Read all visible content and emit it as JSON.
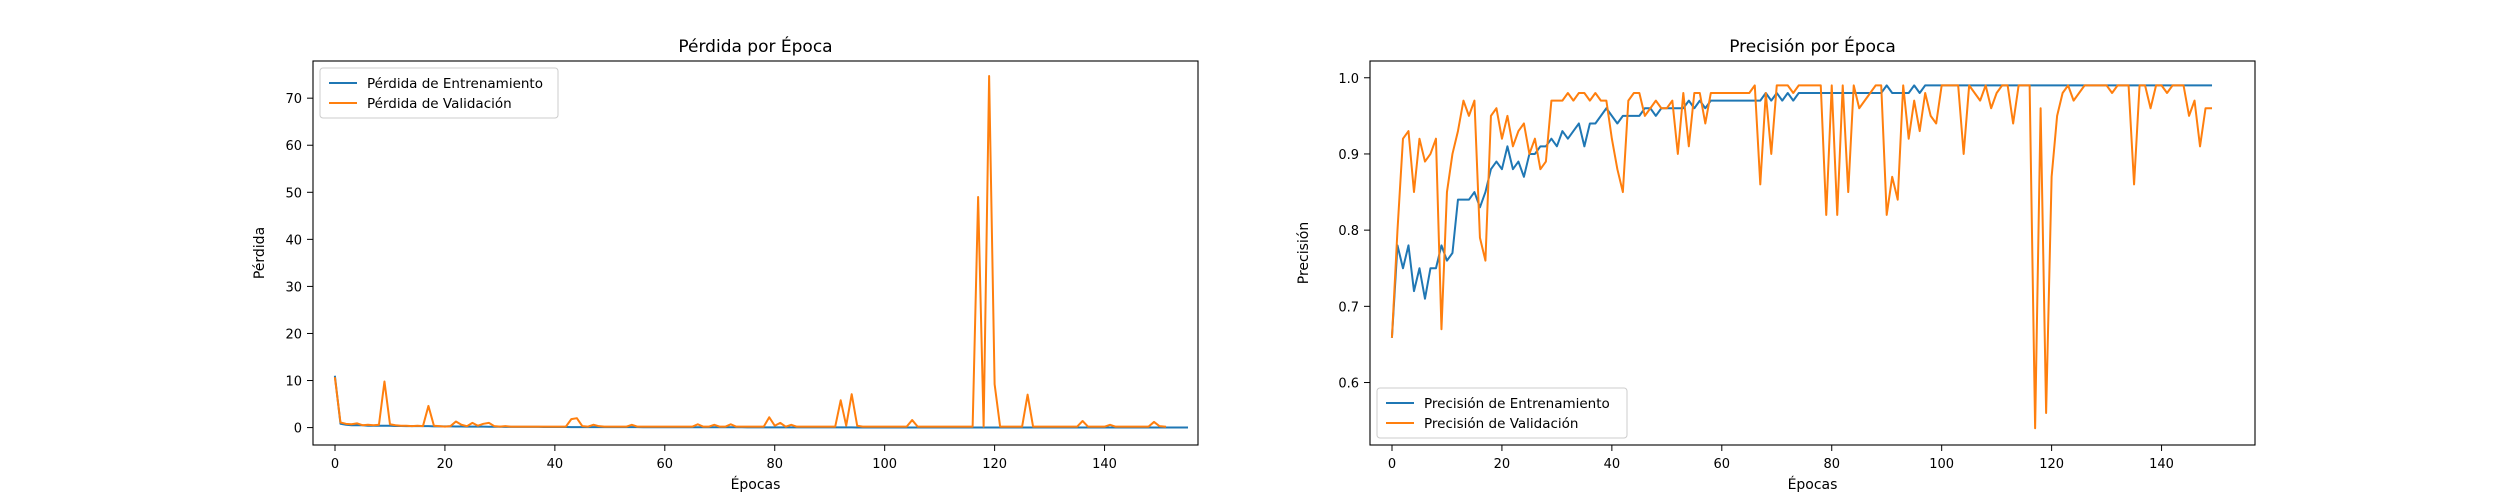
{
  "chart_data": [
    {
      "type": "line",
      "title": "Pérdida por Época",
      "xlabel": "Épocas",
      "ylabel": "Pérdida",
      "xlim": [
        -4,
        157
      ],
      "ylim": [
        -3.7,
        77.9
      ],
      "xticks": [
        0,
        20,
        40,
        60,
        80,
        100,
        120,
        140
      ],
      "yticks": [
        0,
        10,
        20,
        30,
        40,
        50,
        60,
        70
      ],
      "grid": false,
      "legend_position": "upper-left",
      "series": [
        {
          "name": "Pérdida de Entrenamiento",
          "color": "#1f77b4",
          "values": [
            10.8,
            0.8,
            0.6,
            0.5,
            0.5,
            0.5,
            0.4,
            0.4,
            0.4,
            0.4,
            0.4,
            0.35,
            0.35,
            0.3,
            0.3,
            0.3,
            0.3,
            0.3,
            0.25,
            0.25,
            0.25,
            0.25,
            0.22,
            0.22,
            0.2,
            0.2,
            0.2,
            0.2,
            0.18,
            0.18,
            0.18,
            0.16,
            0.16,
            0.15,
            0.15,
            0.15,
            0.14,
            0.14,
            0.13,
            0.13,
            0.12,
            0.12,
            0.12,
            0.11,
            0.11,
            0.11,
            0.1,
            0.1,
            0.1,
            0.1,
            0.1,
            0.09,
            0.09,
            0.09,
            0.09,
            0.09,
            0.08,
            0.08,
            0.08,
            0.08,
            0.08,
            0.08,
            0.07,
            0.07,
            0.07,
            0.07,
            0.07,
            0.07,
            0.06,
            0.06,
            0.06,
            0.06,
            0.06,
            0.06,
            0.06,
            0.05,
            0.05,
            0.05,
            0.05,
            0.05,
            0.05,
            0.05,
            0.05,
            0.05,
            0.04,
            0.04,
            0.04,
            0.04,
            0.04,
            0.04,
            0.04,
            0.04,
            0.04,
            0.04,
            0.04,
            0.03,
            0.03,
            0.03,
            0.03,
            0.03,
            0.03,
            0.03,
            0.03,
            0.03,
            0.03,
            0.03,
            0.03,
            0.03,
            0.03,
            0.03,
            0.02,
            0.02,
            0.02,
            0.02,
            0.02,
            0.02,
            0.02,
            0.02,
            0.02,
            0.02,
            0.02,
            0.02,
            0.02,
            0.02,
            0.02,
            0.02,
            0.02,
            0.02,
            0.02,
            0.02,
            0.02,
            0.02,
            0.02,
            0.02,
            0.02,
            0.02,
            0.02,
            0.02,
            0.02,
            0.02,
            0.02,
            0.02,
            0.02,
            0.02,
            0.02,
            0.02,
            0.02,
            0.02,
            0.02,
            0.02,
            0.02,
            0.02,
            0.02,
            0.02,
            0.02,
            0.02
          ]
        },
        {
          "name": "Pérdida de Validación",
          "color": "#ff7f0e",
          "values": [
            10.5,
            1.1,
            0.8,
            0.7,
            0.9,
            0.5,
            0.6,
            0.5,
            0.6,
            9.8,
            0.7,
            0.5,
            0.4,
            0.4,
            0.3,
            0.4,
            0.3,
            4.6,
            0.4,
            0.3,
            0.2,
            0.3,
            1.3,
            0.6,
            0.3,
            1.0,
            0.4,
            0.8,
            1.0,
            0.3,
            0.2,
            0.3,
            0.2,
            0.2,
            0.2,
            0.2,
            0.2,
            0.2,
            0.2,
            0.2,
            0.2,
            0.2,
            0.2,
            1.8,
            2.0,
            0.3,
            0.2,
            0.6,
            0.3,
            0.2,
            0.2,
            0.2,
            0.2,
            0.2,
            0.6,
            0.2,
            0.2,
            0.2,
            0.2,
            0.2,
            0.2,
            0.2,
            0.2,
            0.2,
            0.2,
            0.2,
            0.7,
            0.2,
            0.2,
            0.6,
            0.2,
            0.2,
            0.7,
            0.2,
            0.2,
            0.2,
            0.2,
            0.2,
            0.2,
            2.2,
            0.4,
            1.0,
            0.2,
            0.6,
            0.2,
            0.2,
            0.2,
            0.2,
            0.2,
            0.2,
            0.2,
            0.2,
            5.8,
            0.4,
            7.1,
            0.4,
            0.2,
            0.2,
            0.2,
            0.2,
            0.2,
            0.2,
            0.2,
            0.2,
            0.2,
            1.6,
            0.2,
            0.2,
            0.2,
            0.2,
            0.2,
            0.2,
            0.2,
            0.2,
            0.2,
            0.2,
            0.2,
            49.0,
            0.2,
            74.7,
            9.2,
            0.2,
            0.2,
            0.2,
            0.2,
            0.2,
            7.0,
            0.2,
            0.2,
            0.2,
            0.2,
            0.2,
            0.2,
            0.2,
            0.2,
            0.2,
            1.4,
            0.2,
            0.2,
            0.2,
            0.2,
            0.6,
            0.2,
            0.2,
            0.2,
            0.2,
            0.2,
            0.2,
            0.2,
            1.2,
            0.3,
            0.2
          ]
        }
      ]
    },
    {
      "type": "line",
      "title": "Precisión por Época",
      "xlabel": "Épocas",
      "ylabel": "Precisión",
      "xlim": [
        -4,
        157
      ],
      "ylim": [
        0.518,
        1.022
      ],
      "xticks": [
        0,
        20,
        40,
        60,
        80,
        100,
        120,
        140
      ],
      "yticks": [
        0.6,
        0.7,
        0.8,
        0.9,
        1.0
      ],
      "ytick_labels": [
        "0.6",
        "0.7",
        "0.8",
        "0.9",
        "1.0"
      ],
      "grid": false,
      "legend_position": "lower-left",
      "series": [
        {
          "name": "Precisión de Entrenamiento",
          "color": "#1f77b4",
          "values": [
            0.66,
            0.78,
            0.75,
            0.78,
            0.72,
            0.75,
            0.71,
            0.75,
            0.75,
            0.78,
            0.76,
            0.77,
            0.84,
            0.84,
            0.84,
            0.85,
            0.83,
            0.85,
            0.88,
            0.89,
            0.88,
            0.91,
            0.88,
            0.89,
            0.87,
            0.9,
            0.9,
            0.91,
            0.91,
            0.92,
            0.91,
            0.93,
            0.92,
            0.93,
            0.94,
            0.91,
            0.94,
            0.94,
            0.95,
            0.96,
            0.95,
            0.94,
            0.95,
            0.95,
            0.95,
            0.95,
            0.96,
            0.96,
            0.95,
            0.96,
            0.96,
            0.96,
            0.96,
            0.96,
            0.97,
            0.96,
            0.97,
            0.96,
            0.97,
            0.97,
            0.97,
            0.97,
            0.97,
            0.97,
            0.97,
            0.97,
            0.97,
            0.97,
            0.98,
            0.97,
            0.98,
            0.97,
            0.98,
            0.97,
            0.98,
            0.98,
            0.98,
            0.98,
            0.98,
            0.98,
            0.98,
            0.98,
            0.98,
            0.98,
            0.98,
            0.98,
            0.98,
            0.98,
            0.98,
            0.98,
            0.99,
            0.98,
            0.98,
            0.98,
            0.98,
            0.99,
            0.98,
            0.99,
            0.99,
            0.99,
            0.99,
            0.99,
            0.99,
            0.99,
            0.99,
            0.99,
            0.99,
            0.99,
            0.99,
            0.99,
            0.99,
            0.99,
            0.99,
            0.99,
            0.99,
            0.99,
            0.99,
            0.99,
            0.99,
            0.99,
            0.99,
            0.99,
            0.99,
            0.99,
            0.99,
            0.99,
            0.99,
            0.99,
            0.99,
            0.99,
            0.99,
            0.99,
            0.99,
            0.99,
            0.99,
            0.99,
            0.99,
            0.99,
            0.99,
            0.99,
            0.99,
            0.99,
            0.99,
            0.99,
            0.99,
            0.99,
            0.99,
            0.99,
            0.99,
            0.99
          ]
        },
        {
          "name": "Precisión de Validación",
          "color": "#ff7f0e",
          "values": [
            0.66,
            0.8,
            0.92,
            0.93,
            0.85,
            0.92,
            0.89,
            0.9,
            0.92,
            0.67,
            0.85,
            0.9,
            0.93,
            0.97,
            0.95,
            0.97,
            0.79,
            0.76,
            0.95,
            0.96,
            0.92,
            0.95,
            0.91,
            0.93,
            0.94,
            0.9,
            0.92,
            0.88,
            0.89,
            0.97,
            0.97,
            0.97,
            0.98,
            0.97,
            0.98,
            0.98,
            0.97,
            0.98,
            0.97,
            0.97,
            0.92,
            0.88,
            0.85,
            0.97,
            0.98,
            0.98,
            0.95,
            0.96,
            0.97,
            0.96,
            0.96,
            0.97,
            0.9,
            0.98,
            0.91,
            0.98,
            0.98,
            0.94,
            0.98,
            0.98,
            0.98,
            0.98,
            0.98,
            0.98,
            0.98,
            0.98,
            0.99,
            0.86,
            0.98,
            0.9,
            0.99,
            0.99,
            0.99,
            0.98,
            0.99,
            0.99,
            0.99,
            0.99,
            0.99,
            0.82,
            0.99,
            0.82,
            0.99,
            0.85,
            0.99,
            0.96,
            0.97,
            0.98,
            0.99,
            0.99,
            0.82,
            0.87,
            0.84,
            0.99,
            0.92,
            0.97,
            0.93,
            0.98,
            0.95,
            0.94,
            0.99,
            0.99,
            0.99,
            0.99,
            0.9,
            0.99,
            0.98,
            0.97,
            0.99,
            0.96,
            0.98,
            0.99,
            0.99,
            0.94,
            0.99,
            0.99,
            0.99,
            0.54,
            0.96,
            0.56,
            0.87,
            0.95,
            0.98,
            0.99,
            0.97,
            0.98,
            0.99,
            0.99,
            0.99,
            0.99,
            0.99,
            0.98,
            0.99,
            0.99,
            0.99,
            0.86,
            0.99,
            0.99,
            0.96,
            0.99,
            0.99,
            0.98,
            0.99,
            0.99,
            0.99,
            0.95,
            0.97,
            0.91,
            0.96,
            0.96
          ]
        }
      ]
    }
  ]
}
